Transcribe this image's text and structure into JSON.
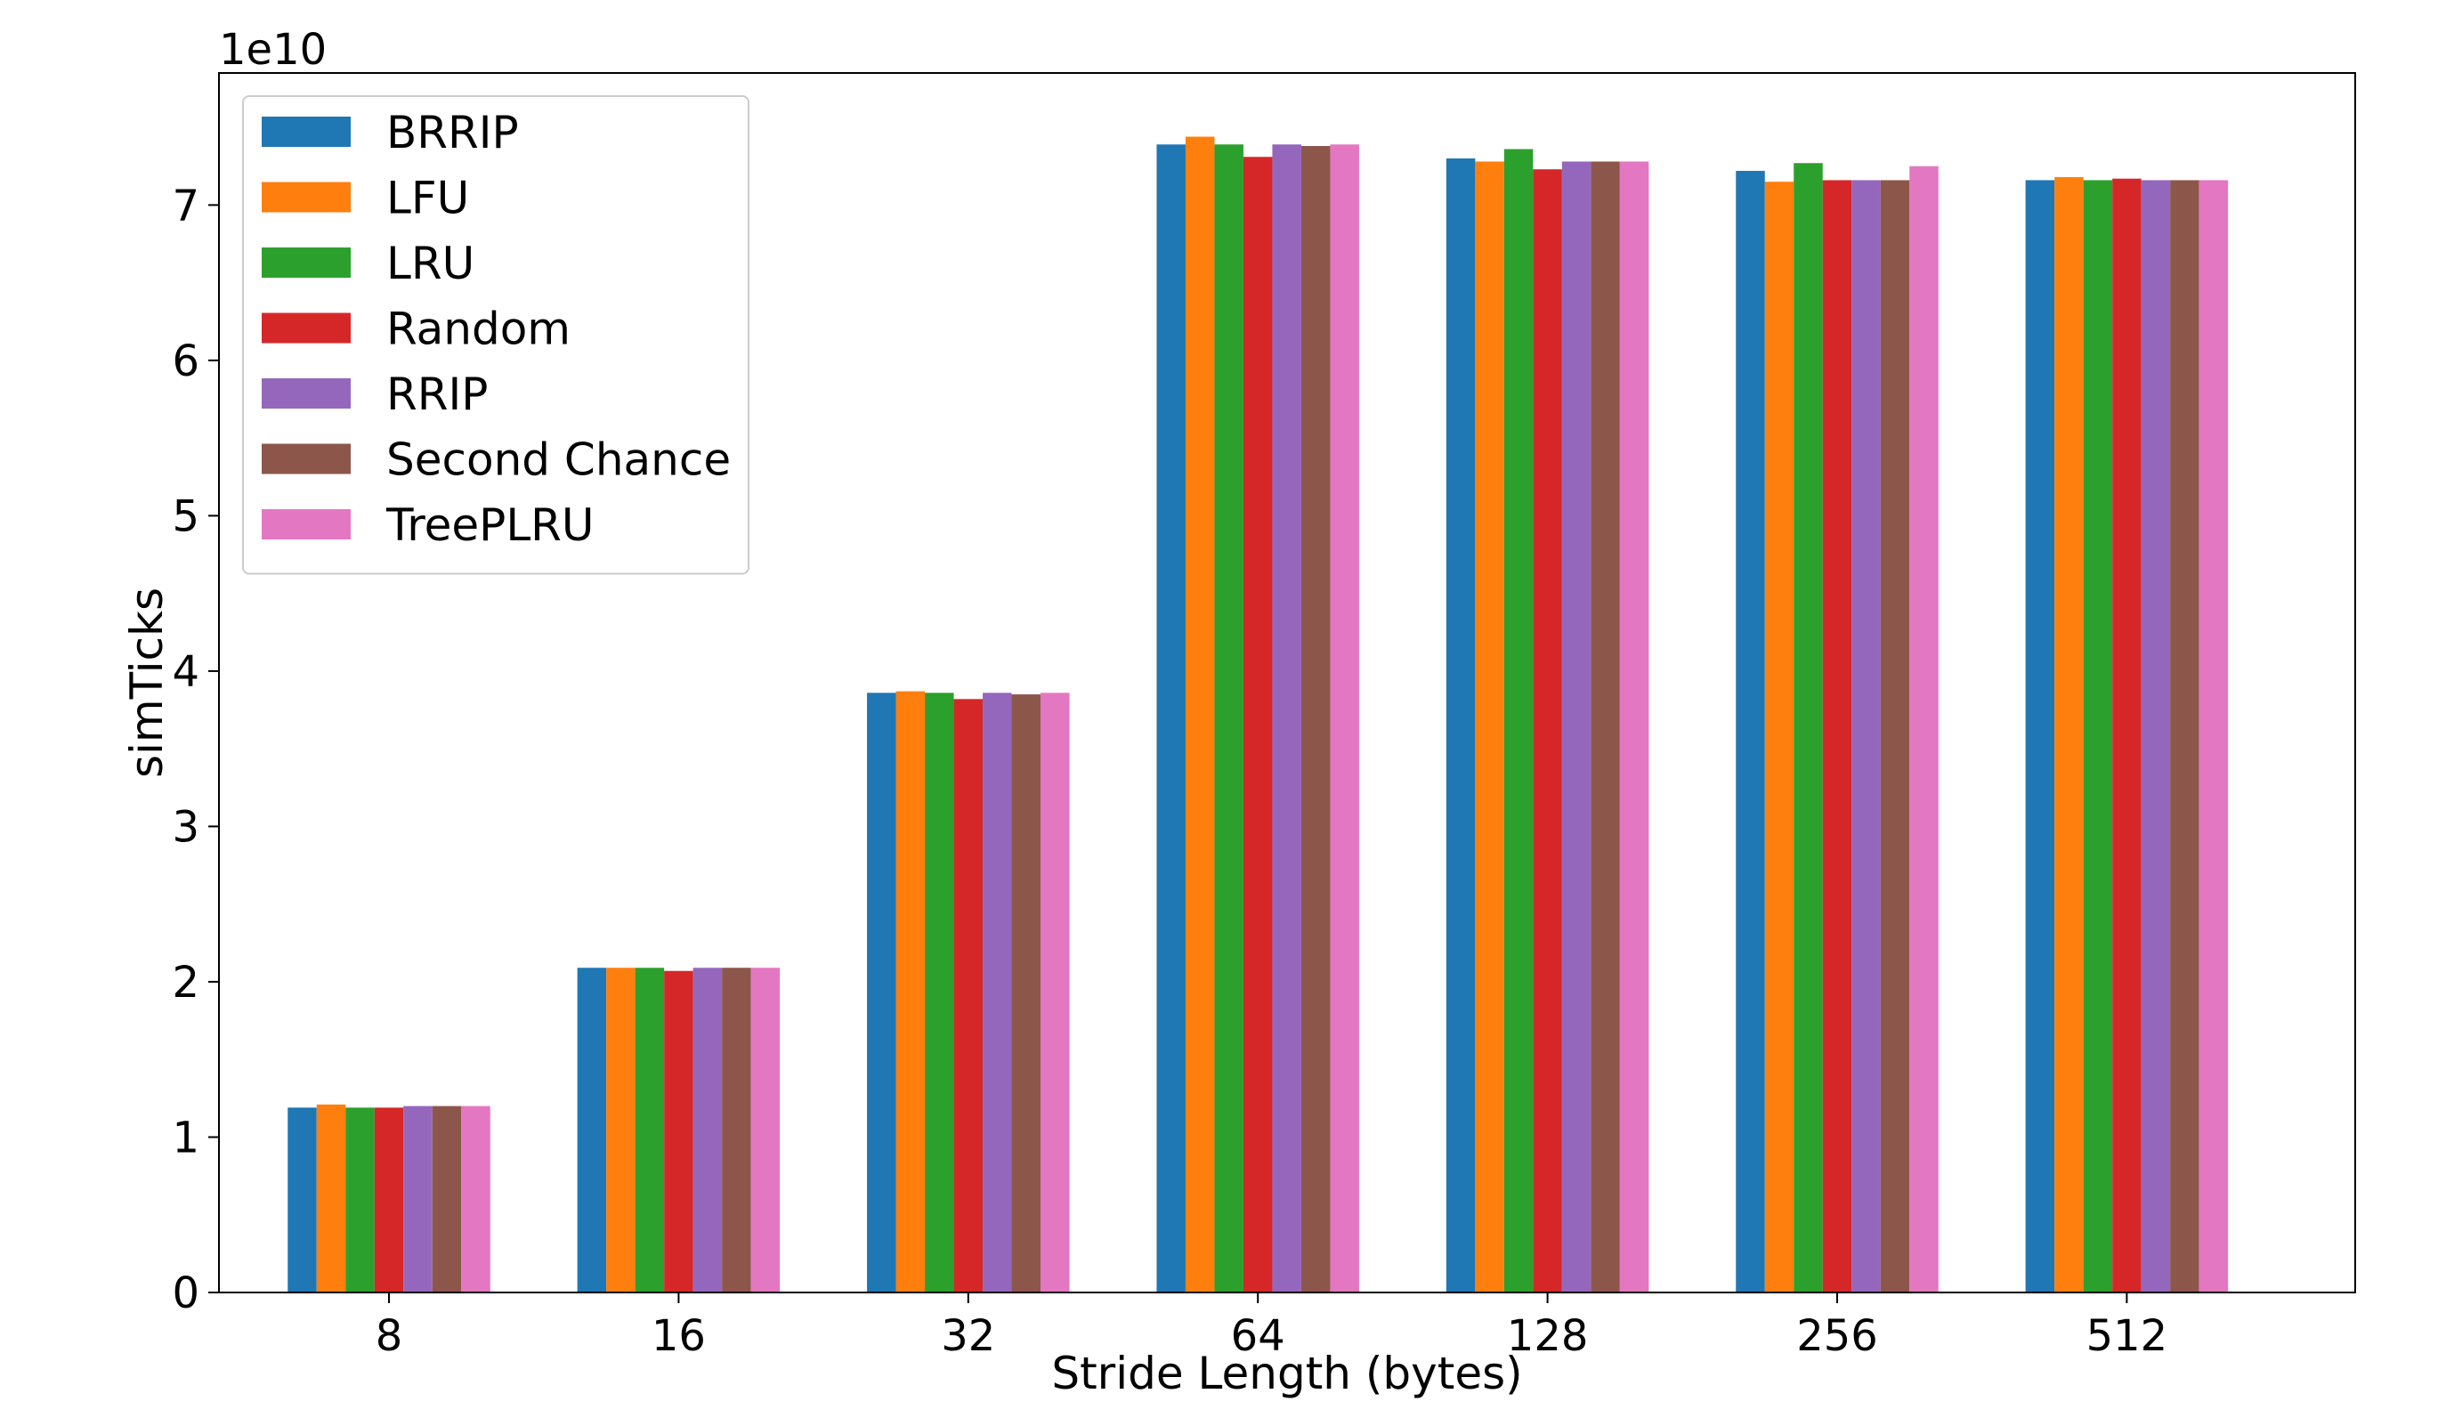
{
  "chart_data": {
    "type": "bar",
    "xlabel": "Stride Length (bytes)",
    "ylabel": "simTicks",
    "y_offset_label": "1e10",
    "y_scale": 10000000000,
    "ylim": [
      0,
      7.85
    ],
    "yticks": [
      0,
      1,
      2,
      3,
      4,
      5,
      6,
      7
    ],
    "yticks_label": [
      "0",
      "1",
      "2",
      "3",
      "4",
      "5",
      "6",
      "7"
    ],
    "categories": [
      "8",
      "16",
      "32",
      "64",
      "128",
      "256",
      "512"
    ],
    "legend_position": "top-left",
    "grid": false,
    "series": [
      {
        "name": "BRRIP",
        "color": "#1f77b4",
        "values": [
          1.19,
          2.09,
          3.86,
          7.39,
          7.3,
          7.22,
          7.16
        ]
      },
      {
        "name": "LFU",
        "color": "#ff7f0e",
        "values": [
          1.21,
          2.09,
          3.87,
          7.44,
          7.28,
          7.15,
          7.18
        ]
      },
      {
        "name": "LRU",
        "color": "#2ca02c",
        "values": [
          1.19,
          2.09,
          3.86,
          7.39,
          7.36,
          7.27,
          7.16
        ]
      },
      {
        "name": "Random",
        "color": "#d62728",
        "values": [
          1.19,
          2.07,
          3.82,
          7.31,
          7.23,
          7.16,
          7.17
        ]
      },
      {
        "name": "RRIP",
        "color": "#9467bd",
        "values": [
          1.2,
          2.09,
          3.86,
          7.39,
          7.28,
          7.16,
          7.16
        ]
      },
      {
        "name": "Second Chance",
        "color": "#8c564b",
        "values": [
          1.2,
          2.09,
          3.85,
          7.38,
          7.28,
          7.16,
          7.16
        ]
      },
      {
        "name": "TreePLRU",
        "color": "#e377c2",
        "values": [
          1.2,
          2.09,
          3.86,
          7.39,
          7.28,
          7.25,
          7.16
        ]
      }
    ]
  }
}
